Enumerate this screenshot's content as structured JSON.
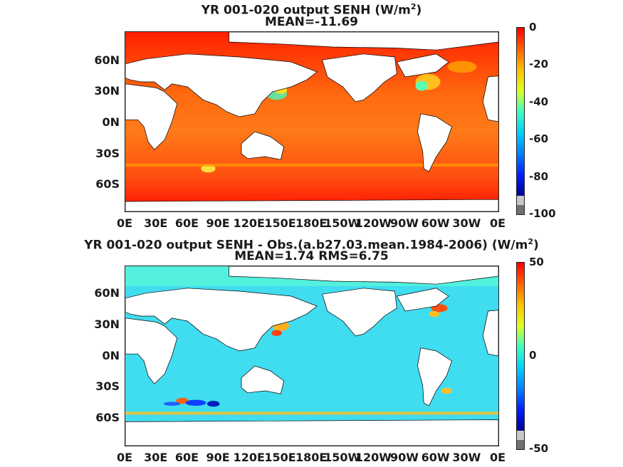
{
  "panel1": {
    "title_main": "YR 001-020 output  SENH (W/m",
    "title_sup": "2",
    "title_end": ")",
    "subtitle": "MEAN=-11.69",
    "colorbar": {
      "ticks": [
        "0",
        "-20",
        "-40",
        "-60",
        "-80",
        "-100"
      ],
      "colors": [
        "#ff0000",
        "#ff6000",
        "#ffc000",
        "#e0ff20",
        "#40ffc0",
        "#00d0ff",
        "#0080ff",
        "#0020ff",
        "#000090"
      ],
      "missing_color": "#c8c8c8",
      "missing2_color": "#707070"
    }
  },
  "panel2": {
    "title_main": "YR 001-020 output SENH - Obs.(a.b27.03.mean.1984-2006) (W/m",
    "title_sup": "2",
    "title_end": ")",
    "subtitle": "MEAN=1.74 RMS=6.75",
    "colorbar": {
      "ticks": [
        "50",
        "0",
        "-50"
      ],
      "colors": [
        "#ff0000",
        "#ff6000",
        "#ffc000",
        "#e0ff20",
        "#40ffc0",
        "#00d0ff",
        "#0080ff",
        "#0020ff",
        "#000090"
      ],
      "missing_color": "#c8c8c8",
      "missing2_color": "#707070"
    }
  },
  "lat_labels": [
    "60N",
    "30N",
    "0N",
    "30S",
    "60S"
  ],
  "lon_labels": [
    "0E",
    "30E",
    "60E",
    "90E",
    "120E",
    "150E",
    "180E",
    "150W",
    "120W",
    "90W",
    "60W",
    "30W",
    "0E"
  ],
  "colors": {
    "land": "#ffffff",
    "ocean1": "#ff5a10",
    "ocean2": "#3fe0f0"
  }
}
